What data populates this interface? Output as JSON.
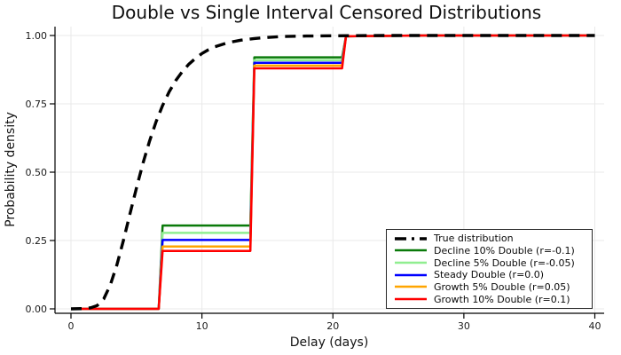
{
  "chart_data": {
    "type": "line",
    "title": "Double vs Single Interval Censored Distributions",
    "xlabel": "Delay (days)",
    "ylabel": "Probability density",
    "xlim": [
      0,
      40
    ],
    "ylim": [
      0.0,
      1.0
    ],
    "x_ticks": {
      "values": [
        0,
        10,
        20,
        30,
        40
      ],
      "labels": [
        "0",
        "10",
        "20",
        "30",
        "40"
      ]
    },
    "y_ticks": {
      "values": [
        0.0,
        0.25,
        0.5,
        0.75,
        1.0
      ],
      "labels": [
        "0.00",
        "0.25",
        "0.50",
        "0.75",
        "1.00"
      ]
    },
    "grid": true,
    "grid_color": "#e9e9e9",
    "axis_color": "#000000",
    "legend_position": "bottom-right",
    "censoring_interval_days": 7,
    "step_change_days": [
      7,
      14,
      21
    ],
    "series": [
      {
        "name": "True distribution",
        "color": "#000000",
        "line_style": "dashed",
        "line_width": 3.4,
        "points": [
          [
            0,
            0
          ],
          [
            1,
            0.001
          ],
          [
            1.5,
            0.004
          ],
          [
            2,
            0.012
          ],
          [
            2.5,
            0.036
          ],
          [
            3,
            0.087
          ],
          [
            3.5,
            0.16
          ],
          [
            4,
            0.25
          ],
          [
            4.5,
            0.346
          ],
          [
            5,
            0.442
          ],
          [
            5.5,
            0.533
          ],
          [
            6,
            0.614
          ],
          [
            6.5,
            0.685
          ],
          [
            7,
            0.744
          ],
          [
            7.5,
            0.794
          ],
          [
            8,
            0.835
          ],
          [
            8.5,
            0.868
          ],
          [
            9,
            0.895
          ],
          [
            9.5,
            0.916
          ],
          [
            10,
            0.934
          ],
          [
            10.5,
            0.948
          ],
          [
            11,
            0.959
          ],
          [
            12,
            0.974
          ],
          [
            13,
            0.983
          ],
          [
            14,
            0.989
          ],
          [
            15,
            0.993
          ],
          [
            16,
            0.996
          ],
          [
            18,
            0.998
          ],
          [
            20,
            0.999
          ],
          [
            24,
            1.0
          ],
          [
            40,
            1.0
          ]
        ]
      },
      {
        "name": "Decline 10% Double (r=-0.1)",
        "color": "#0a7a0a",
        "line_style": "solid",
        "line_width": 2.5,
        "plateaus": {
          "days_0_to_7": 0.0,
          "days_7_to_14": 0.305,
          "days_14_to_21": 0.92,
          "after_day_21": 1.0
        },
        "points": [
          [
            0,
            0
          ],
          [
            6.7,
            0
          ],
          [
            7,
            0.305
          ],
          [
            13.7,
            0.305
          ],
          [
            14,
            0.92
          ],
          [
            20.7,
            0.92
          ],
          [
            21,
            0.997
          ],
          [
            27,
            1.0
          ],
          [
            40,
            1.0
          ]
        ]
      },
      {
        "name": "Decline 5% Double (r=-0.05)",
        "color": "#90ee90",
        "line_style": "solid",
        "line_width": 2.5,
        "plateaus": {
          "days_0_to_7": 0.0,
          "days_7_to_14": 0.278,
          "days_14_to_21": 0.91,
          "after_day_21": 1.0
        },
        "points": [
          [
            0,
            0
          ],
          [
            6.7,
            0
          ],
          [
            7,
            0.278
          ],
          [
            13.7,
            0.278
          ],
          [
            14,
            0.91
          ],
          [
            20.7,
            0.91
          ],
          [
            21,
            0.997
          ],
          [
            27,
            1.0
          ],
          [
            40,
            1.0
          ]
        ]
      },
      {
        "name": "Steady Double (r=0.0)",
        "color": "#0000ff",
        "line_style": "solid",
        "line_width": 2.5,
        "plateaus": {
          "days_0_to_7": 0.0,
          "days_7_to_14": 0.252,
          "days_14_to_21": 0.9,
          "after_day_21": 1.0
        },
        "points": [
          [
            0,
            0
          ],
          [
            6.7,
            0
          ],
          [
            7,
            0.252
          ],
          [
            13.7,
            0.252
          ],
          [
            14,
            0.9
          ],
          [
            20.7,
            0.9
          ],
          [
            21,
            0.997
          ],
          [
            27,
            1.0
          ],
          [
            40,
            1.0
          ]
        ]
      },
      {
        "name": "Growth 5% Double (r=0.05)",
        "color": "#ffa500",
        "line_style": "solid",
        "line_width": 2.5,
        "plateaus": {
          "days_0_to_7": 0.0,
          "days_7_to_14": 0.228,
          "days_14_to_21": 0.89,
          "after_day_21": 1.0
        },
        "points": [
          [
            0,
            0
          ],
          [
            6.7,
            0
          ],
          [
            7,
            0.228
          ],
          [
            13.7,
            0.228
          ],
          [
            14,
            0.89
          ],
          [
            20.7,
            0.89
          ],
          [
            21,
            0.997
          ],
          [
            27,
            1.0
          ],
          [
            40,
            1.0
          ]
        ]
      },
      {
        "name": "Growth 10% Double (r=0.1)",
        "color": "#ff0000",
        "line_style": "solid",
        "line_width": 2.5,
        "plateaus": {
          "days_0_to_7": 0.0,
          "days_7_to_14": 0.212,
          "days_14_to_21": 0.88,
          "after_day_21": 1.0
        },
        "points": [
          [
            0,
            0
          ],
          [
            6.7,
            0
          ],
          [
            7,
            0.212
          ],
          [
            13.7,
            0.212
          ],
          [
            14,
            0.88
          ],
          [
            20.7,
            0.88
          ],
          [
            21,
            0.997
          ],
          [
            27,
            1.0
          ],
          [
            40,
            1.0
          ]
        ]
      }
    ]
  }
}
